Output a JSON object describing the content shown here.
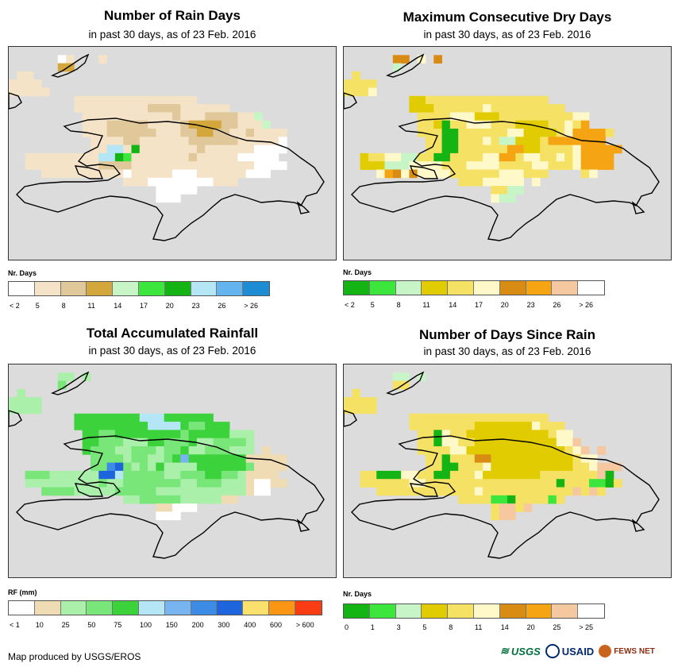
{
  "panels": [
    {
      "id": "rain_days",
      "title": "Number of Rain Days",
      "subtitle": "in past 30 days, as of 23 Feb. 2016",
      "legend_title": "Nr. Days",
      "legend_colors": [
        "#ffffff",
        "#f5e3c8",
        "#e0c89a",
        "#d4a73c",
        "#c8f5c8",
        "#3ce63c",
        "#14b414",
        "#b4e6f5",
        "#64b4f0",
        "#1e8cd2"
      ],
      "legend_ticks": [
        "< 2",
        "5",
        "8",
        "11",
        "14",
        "17",
        "20",
        "23",
        "26",
        "> 26"
      ],
      "palette": [
        "#ffffff",
        "#f5e3c8",
        "#e0c89a",
        "#d4a73c",
        "#c8f5c8",
        "#3ce63c",
        "#14b414",
        "#b4e6f5"
      ],
      "grid": [
        "........................................",
        "......01...1............................",
        "......33................................",
        ".11.....................................",
        "1111....................................",
        "11111...................................",
        "........111111111111111.................",
        "........1111111112222111111.............",
        ".........1111111111121112222114.........",
        ".........11122222111123333221114........",
        ".........1112222221112233221121111......",
        "..........111122111111222222111110......",
        "..........117716111111121111110000......",
        "..1111111117765111111121111100000.......",
        "..11111111122221111111111111110000......",
        "....1111111111011111000111111000........",
        "..............11100000000111............",
        "..................00000.................",
        "..................000...................",
        "........................................",
        "........................................",
        "........................................",
        "........................................",
        "........................................",
        "........................................",
        "........................................",
        "........................................"
      ]
    },
    {
      "id": "max_dry",
      "title": "Maximum Consecutive Dry Days",
      "subtitle": "in past 30 days, as of 23 Feb. 2016",
      "legend_title": "Nr. Days",
      "legend_colors": [
        "#14b414",
        "#3ce63c",
        "#c8f5c8",
        "#e0cc00",
        "#f5e164",
        "#fff8c8",
        "#d98c14",
        "#f5a514",
        "#f5c8a0",
        "#ffffff"
      ],
      "legend_ticks": [
        "< 2",
        "5",
        "8",
        "11",
        "14",
        "17",
        "20",
        "23",
        "26",
        "> 26"
      ],
      "palette": [
        "#14b414",
        "#3ce63c",
        "#c8f5c8",
        "#e0cc00",
        "#f5e164",
        "#fff8c8",
        "#d98c14",
        "#f5a514",
        "#f5c8a0"
      ],
      "grid": [
        "........................................",
        "......66.5.6............................",
        "......2.................................",
        ".4......................................",
        "4444....................................",
        "4445....................................",
        "........33444444444444444...............",
        "........3334444445444444444.............",
        ".........444455533344444444455..........",
        ".........443044555444333344547..........",
        ".........444004444445533334577774.......",
        "..........4400444542233347777777........",
        "..........440044444477334444577777......",
        "..3445522440044445577455445457777.......",
        "..3332225555444555544445544457777.......",
        "....576565555444444555444....45.........",
        "..............44455555.5................",
        "..................4422..................",
        "..................522...................",
        "........................................",
        "........................................",
        "........................................",
        "........................................",
        "........................................",
        "........................................",
        "........................................",
        "........................................"
      ]
    },
    {
      "id": "rainfall",
      "title": "Total Accumulated Rainfall",
      "subtitle": "in past 30 days, as of 23 Feb. 2016",
      "legend_title": "RF (mm)",
      "legend_colors": [
        "#ffffff",
        "#f0dcb4",
        "#aaf0aa",
        "#78e678",
        "#3cd23c",
        "#b4e6f5",
        "#78b4f0",
        "#3c8ce6",
        "#1e64dc",
        "#fae16e",
        "#fa9614",
        "#fa3c14"
      ],
      "legend_ticks": [
        "< 1",
        "10",
        "25",
        "50",
        "75",
        "100",
        "150",
        "200",
        "300",
        "400",
        "600",
        "> 600"
      ],
      "palette": [
        "#ffffff",
        "#f0dcb4",
        "#aaf0aa",
        "#78e678",
        "#3cd23c",
        "#b4e6f5",
        "#78b4f0",
        "#3c8ce6",
        "#1e64dc"
      ],
      "grid": [
        "........................................",
        "......22.2..............................",
        "......3.................................",
        ".2......................................",
        "2222....................................",
        "2222....................................",
        "........44444444555444444...............",
        "........4444444445555433444.............",
        ".........443344444444344444222..........",
        ".........443332224433342233332..........",
        ".........433322333233422333222.1........",
        "..........333323322346444444411111......",
        "..........337832324222244444431111......",
        "..3332222228853333322333443321111.......",
        "..22222222232233333332233322210011......",
        "....3333222223333322222222222100........",
        "..............22333332222211............",
        "..................11000.................",
        "..................000...................",
        "........................................",
        "........................................",
        "........................................",
        "........................................",
        "........................................",
        "........................................",
        "........................................",
        "........................................"
      ]
    },
    {
      "id": "since_rain",
      "title": "Number of Days Since Rain",
      "subtitle": "in past 30 days, as of 23 Feb. 2016",
      "legend_title": "Nr. Days",
      "legend_colors": [
        "#14b414",
        "#3ce63c",
        "#c8f5c8",
        "#e0cc00",
        "#f5e164",
        "#fff8c8",
        "#d98c14",
        "#f5a514",
        "#f5c8a0",
        "#ffffff"
      ],
      "legend_ticks": [
        "0",
        "1",
        "3",
        "5",
        "8",
        "11",
        "14",
        "20",
        "25",
        "> 25"
      ],
      "palette": [
        "#14b414",
        "#3ce63c",
        "#c8f5c8",
        "#e0cc00",
        "#f5e164",
        "#fff8c8",
        "#d98c14",
        "#f5a514",
        "#f5c8a0"
      ],
      "grid": [
        "........................................",
        "......22.2..............................",
        "......44................................",
        ".4......................................",
        "4444....................................",
        "4444....................................",
        "........44444444444444444...............",
        "........4444444433333335444.............",
        ".........4405443333333333455............",
        ".........44055443333333333558...........",
        ".........444455333333333333458.8........",
        "..........440444663333333333455.........",
        "..........440044453333333333445888......",
        "..4400055440044453333333444444480.......",
        "..44444455444444444444444404441104......",
        "....4444444444445444444444448484........",
        "..............4444110444414.............",
        "..................48848.................",
        "..................488...................",
        "........................................",
        "........................................",
        "........................................",
        "........................................",
        "........................................",
        "........................................",
        "........................................",
        "........................................"
      ]
    }
  ],
  "footer": {
    "credit": "Map produced by USGS/EROS"
  },
  "logos": {
    "usgs": "USGS",
    "usaid": "USAID",
    "fews": "FEWS NET"
  }
}
